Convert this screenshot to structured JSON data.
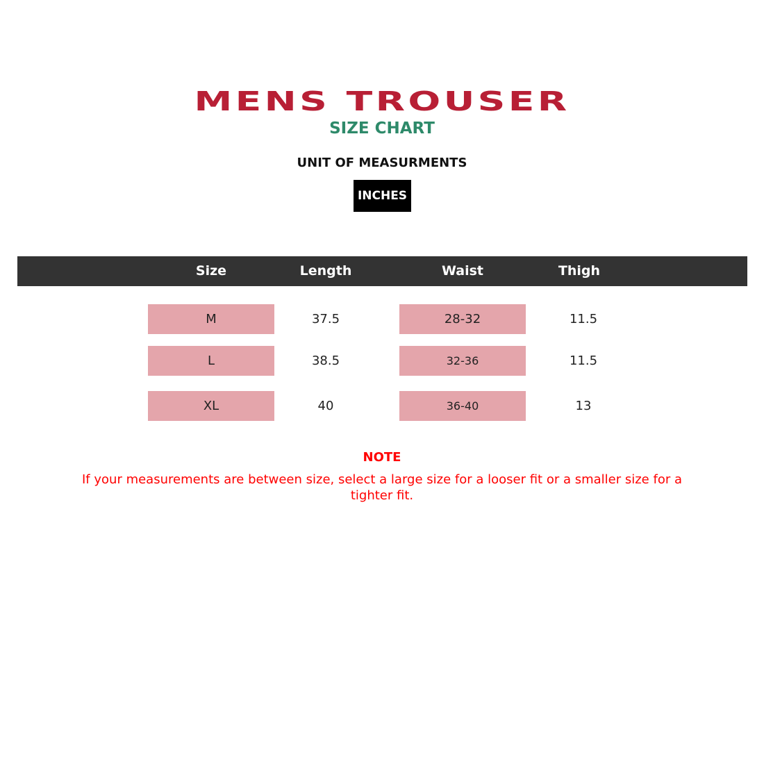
{
  "title": "MENS TROUSER",
  "subtitle": "SIZE CHART",
  "unit_label": "UNIT OF MEASURMENTS",
  "unit": "INCHES",
  "colors": {
    "title": "#b81f35",
    "subtitle": "#2e8a6a",
    "header_bg": "#333333",
    "highlight": "#e4a5ab",
    "note": "#ff0000"
  },
  "table": {
    "headers": [
      "Size",
      "Length",
      "Waist",
      "Thigh"
    ],
    "rows": [
      [
        "M",
        "37.5",
        "28-32",
        "11.5"
      ],
      [
        "L",
        "38.5",
        "32-36",
        "11.5"
      ],
      [
        "XL",
        "40",
        "36-40",
        "13"
      ]
    ]
  },
  "note": {
    "title": "NOTE",
    "text": "If your measurements are between size, select a large size for a looser fit or a smaller size for a tighter fit."
  }
}
